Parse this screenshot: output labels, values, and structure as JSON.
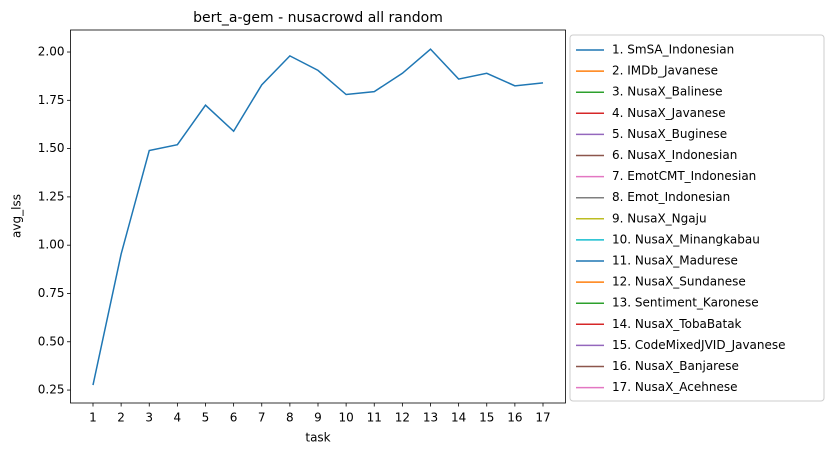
{
  "chart_data": {
    "type": "line",
    "title": "bert_a-gem - nusacrowd all random",
    "xlabel": "task",
    "ylabel": "avg_lss",
    "x": [
      1,
      2,
      3,
      4,
      5,
      6,
      7,
      8,
      9,
      10,
      11,
      12,
      13,
      14,
      15,
      16,
      17
    ],
    "xlim": [
      0.2,
      17.8
    ],
    "xticks": [
      1,
      2,
      3,
      4,
      5,
      6,
      7,
      8,
      9,
      10,
      11,
      12,
      13,
      14,
      15,
      16,
      17
    ],
    "ylim": [
      0.183,
      2.114
    ],
    "yticks": [
      0.25,
      {
        "value": 0.5,
        "label": "0.50"
      },
      0.75,
      {
        "value": 1.0,
        "label": "1.00"
      },
      1.25,
      {
        "value": 1.5,
        "label": "1.50"
      },
      1.75,
      {
        "value": 2.0,
        "label": "2.00"
      }
    ],
    "grid": false,
    "legend": "outside right",
    "series": [
      {
        "name": "1. SmSA_Indonesian",
        "color": "#1f77b4",
        "values": [
          0.276,
          0.954,
          1.49,
          1.52,
          1.725,
          1.59,
          1.83,
          1.98,
          1.905,
          1.78,
          1.795,
          1.89,
          2.015,
          1.86,
          1.89,
          1.825,
          1.84
        ]
      },
      {
        "name": "2. IMDb_Javanese",
        "color": "#ff7f0e",
        "values": [
          null,
          null,
          null,
          null,
          null,
          null,
          null,
          null,
          null,
          null,
          null,
          null,
          null,
          null,
          null,
          null,
          null
        ]
      },
      {
        "name": "3. NusaX_Balinese",
        "color": "#2ca02c",
        "values": [
          null,
          null,
          null,
          null,
          null,
          null,
          null,
          null,
          null,
          null,
          null,
          null,
          null,
          null,
          null,
          null,
          null
        ]
      },
      {
        "name": "4. NusaX_Javanese",
        "color": "#d62728",
        "values": [
          null,
          null,
          null,
          null,
          null,
          null,
          null,
          null,
          null,
          null,
          null,
          null,
          null,
          null,
          null,
          null,
          null
        ]
      },
      {
        "name": "5. NusaX_Buginese",
        "color": "#9467bd",
        "values": [
          null,
          null,
          null,
          null,
          null,
          null,
          null,
          null,
          null,
          null,
          null,
          null,
          null,
          null,
          null,
          null,
          null
        ]
      },
      {
        "name": "6. NusaX_Indonesian",
        "color": "#8c564b",
        "values": [
          null,
          null,
          null,
          null,
          null,
          null,
          null,
          null,
          null,
          null,
          null,
          null,
          null,
          null,
          null,
          null,
          null
        ]
      },
      {
        "name": "7. EmotCMT_Indonesian",
        "color": "#e377c2",
        "values": [
          null,
          null,
          null,
          null,
          null,
          null,
          null,
          null,
          null,
          null,
          null,
          null,
          null,
          null,
          null,
          null,
          null
        ]
      },
      {
        "name": "8. Emot_Indonesian",
        "color": "#7f7f7f",
        "values": [
          null,
          null,
          null,
          null,
          null,
          null,
          null,
          null,
          null,
          null,
          null,
          null,
          null,
          null,
          null,
          null,
          null
        ]
      },
      {
        "name": "9. NusaX_Ngaju",
        "color": "#bcbd22",
        "values": [
          null,
          null,
          null,
          null,
          null,
          null,
          null,
          null,
          null,
          null,
          null,
          null,
          null,
          null,
          null,
          null,
          null
        ]
      },
      {
        "name": "10. NusaX_Minangkabau",
        "color": "#17becf",
        "values": [
          null,
          null,
          null,
          null,
          null,
          null,
          null,
          null,
          null,
          null,
          null,
          null,
          null,
          null,
          null,
          null,
          null
        ]
      },
      {
        "name": "11. NusaX_Madurese",
        "color": "#1f77b4",
        "values": [
          null,
          null,
          null,
          null,
          null,
          null,
          null,
          null,
          null,
          null,
          null,
          null,
          null,
          null,
          null,
          null,
          null
        ]
      },
      {
        "name": "12. NusaX_Sundanese",
        "color": "#ff7f0e",
        "values": [
          null,
          null,
          null,
          null,
          null,
          null,
          null,
          null,
          null,
          null,
          null,
          null,
          null,
          null,
          null,
          null,
          null
        ]
      },
      {
        "name": "13. Sentiment_Karonese",
        "color": "#2ca02c",
        "values": [
          null,
          null,
          null,
          null,
          null,
          null,
          null,
          null,
          null,
          null,
          null,
          null,
          null,
          null,
          null,
          null,
          null
        ]
      },
      {
        "name": "14. NusaX_TobaBatak",
        "color": "#d62728",
        "values": [
          null,
          null,
          null,
          null,
          null,
          null,
          null,
          null,
          null,
          null,
          null,
          null,
          null,
          null,
          null,
          null,
          null
        ]
      },
      {
        "name": "15. CodeMixedJVID_Javanese",
        "color": "#9467bd",
        "values": [
          null,
          null,
          null,
          null,
          null,
          null,
          null,
          null,
          null,
          null,
          null,
          null,
          null,
          null,
          null,
          null,
          null
        ]
      },
      {
        "name": "16. NusaX_Banjarese",
        "color": "#8c564b",
        "values": [
          null,
          null,
          null,
          null,
          null,
          null,
          null,
          null,
          null,
          null,
          null,
          null,
          null,
          null,
          null,
          null,
          null
        ]
      },
      {
        "name": "17. NusaX_Acehnese",
        "color": "#e377c2",
        "values": [
          null,
          null,
          null,
          null,
          null,
          null,
          null,
          null,
          null,
          null,
          null,
          null,
          null,
          null,
          null,
          null,
          null
        ]
      }
    ]
  }
}
